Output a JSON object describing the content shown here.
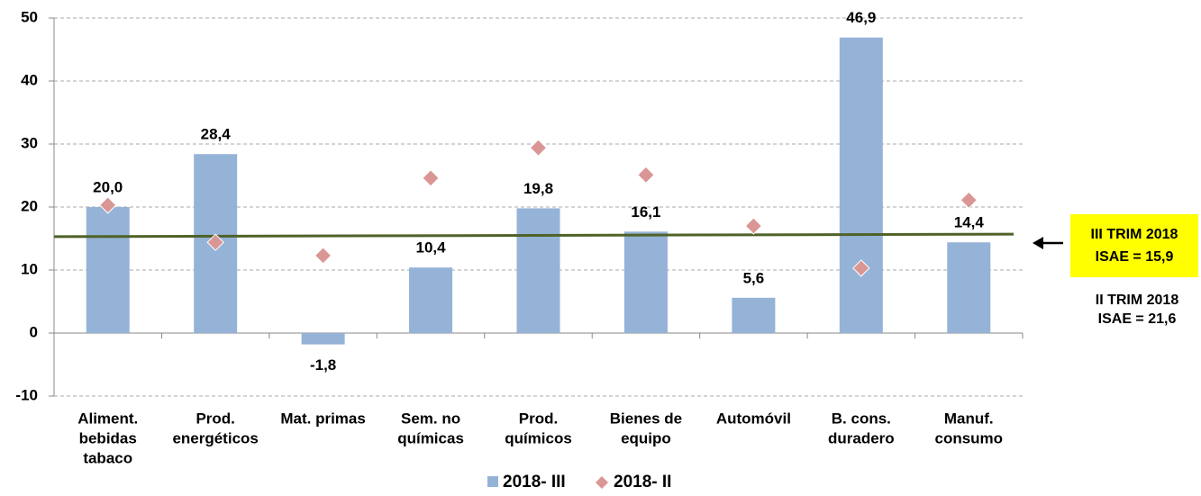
{
  "chart_data": {
    "type": "bar",
    "categories": [
      [
        "Aliment.",
        "bebidas",
        "tabaco"
      ],
      [
        "Prod.",
        "energéticos"
      ],
      [
        "Mat. primas"
      ],
      [
        "Sem. no",
        "químicas"
      ],
      [
        "Prod.",
        "químicos"
      ],
      [
        "Bienes de",
        "equipo"
      ],
      [
        "Automóvil"
      ],
      [
        "B. cons.",
        "duradero"
      ],
      [
        "Manuf.",
        "consumo"
      ]
    ],
    "series": [
      {
        "name": "2018- III",
        "color": "#95b3d7",
        "values": [
          20.0,
          28.4,
          -1.8,
          10.4,
          19.8,
          16.1,
          5.6,
          46.9,
          14.4
        ],
        "value_labels": [
          "20,0",
          "28,4",
          "-1,8",
          "10,4",
          "19,8",
          "16,1",
          "5,6",
          "46,9",
          "14,4"
        ]
      },
      {
        "name": "2018- II",
        "color": "#d99694",
        "marker": "diamond",
        "values": [
          20.3,
          14.4,
          12.3,
          24.6,
          29.4,
          25.1,
          17.0,
          10.3,
          21.1
        ]
      }
    ],
    "reference_line": {
      "values": [
        15.3,
        15.7
      ],
      "color": "#4f6228"
    },
    "ylim": [
      -10,
      50
    ],
    "yticks": [
      -10,
      0,
      10,
      20,
      30,
      40,
      50
    ],
    "grid": true,
    "annotations": [
      {
        "lines": [
          "III TRIM 2018",
          "ISAE = 15,9"
        ],
        "color": "#953735",
        "background": "#ffff00"
      },
      {
        "lines": [
          "II TRIM 2018",
          "ISAE = 21,6"
        ],
        "color": "#953735"
      }
    ]
  }
}
